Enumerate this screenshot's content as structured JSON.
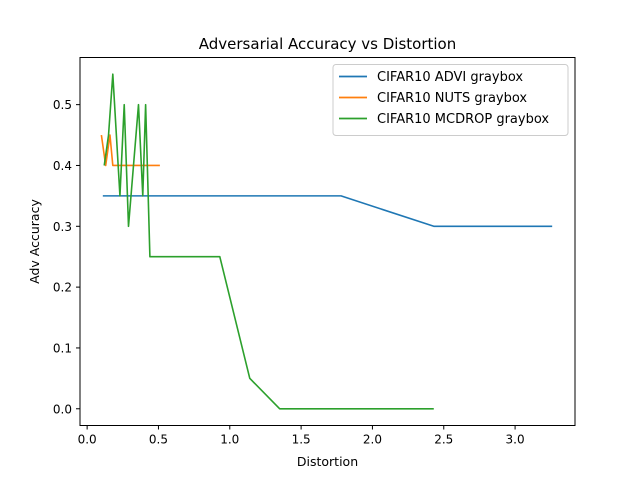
{
  "chart_data": {
    "type": "line",
    "title": "Adversarial Accuracy vs Distortion",
    "xlabel": "Distortion",
    "ylabel": "Adv Accuracy",
    "xlim": [
      -0.05,
      3.42
    ],
    "ylim": [
      -0.0275,
      0.5775
    ],
    "xticks": [
      0.0,
      0.5,
      1.0,
      1.5,
      2.0,
      2.5,
      3.0
    ],
    "xtick_labels": [
      "0.0",
      "0.5",
      "1.0",
      "1.5",
      "2.0",
      "2.5",
      "3.0"
    ],
    "yticks": [
      0.0,
      0.1,
      0.2,
      0.3,
      0.4,
      0.5
    ],
    "ytick_labels": [
      "0.0",
      "0.1",
      "0.2",
      "0.3",
      "0.4",
      "0.5"
    ],
    "grid": false,
    "legend_position": "top-right",
    "series": [
      {
        "name": "CIFAR10 ADVI graybox",
        "color": "#1f77b4",
        "x": [
          0.11,
          1.78,
          2.43,
          3.26
        ],
        "y": [
          0.35,
          0.35,
          0.3,
          0.3
        ]
      },
      {
        "name": "CIFAR10 NUTS graybox",
        "color": "#ff7f0e",
        "x": [
          0.1,
          0.13,
          0.16,
          0.18,
          0.195,
          0.51
        ],
        "y": [
          0.45,
          0.4,
          0.45,
          0.4,
          0.4,
          0.4
        ]
      },
      {
        "name": "CIFAR10 MCDROP graybox",
        "color": "#2ca02c",
        "x": [
          0.12,
          0.15,
          0.18,
          0.23,
          0.26,
          0.29,
          0.36,
          0.39,
          0.41,
          0.44,
          0.93,
          1.14,
          1.35,
          2.43
        ],
        "y": [
          0.4,
          0.45,
          0.55,
          0.35,
          0.5,
          0.3,
          0.5,
          0.35,
          0.5,
          0.25,
          0.25,
          0.05,
          0.0,
          0.0
        ]
      }
    ]
  }
}
